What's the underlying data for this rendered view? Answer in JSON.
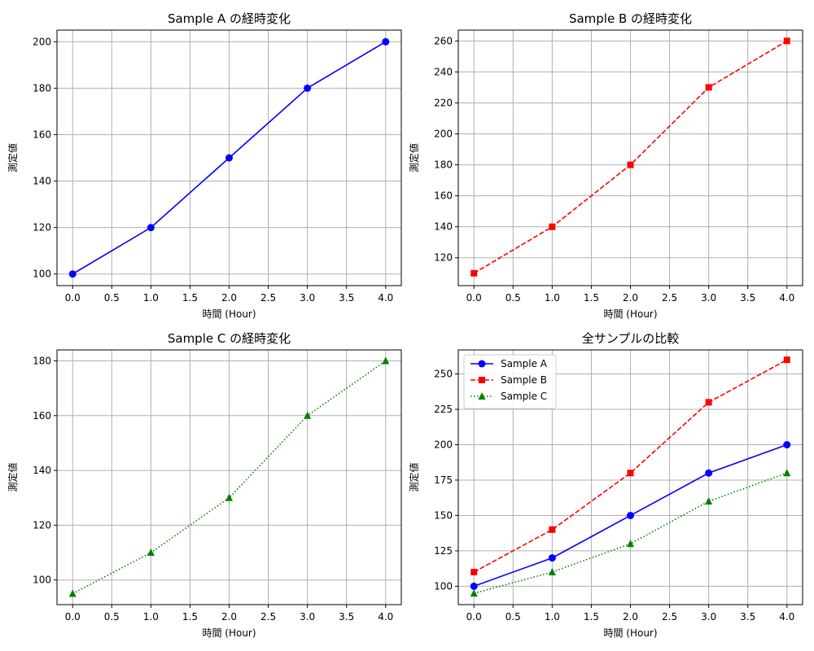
{
  "chart_data": [
    {
      "type": "line",
      "title": "Sample A の経時変化",
      "xlabel": "時間 (Hour)",
      "ylabel": "測定値",
      "xlim": [
        -0.2,
        4.2
      ],
      "ylim": [
        95,
        205
      ],
      "xticks": [
        0.0,
        0.5,
        1.0,
        1.5,
        2.0,
        2.5,
        3.0,
        3.5,
        4.0
      ],
      "yticks": [
        100,
        120,
        140,
        160,
        180,
        200
      ],
      "grid": true,
      "series": [
        {
          "x": [
            0,
            1,
            2,
            3,
            4
          ],
          "values": [
            100,
            120,
            150,
            180,
            200
          ],
          "color": "#0000ff",
          "linestyle": "solid",
          "marker": "circle"
        }
      ]
    },
    {
      "type": "line",
      "title": "Sample B の経時変化",
      "xlabel": "時間 (Hour)",
      "ylabel": "測定値",
      "xlim": [
        -0.2,
        4.2
      ],
      "ylim": [
        102,
        267
      ],
      "xticks": [
        0.0,
        0.5,
        1.0,
        1.5,
        2.0,
        2.5,
        3.0,
        3.5,
        4.0
      ],
      "yticks": [
        120,
        140,
        160,
        180,
        200,
        220,
        240,
        260
      ],
      "grid": true,
      "series": [
        {
          "x": [
            0,
            1,
            2,
            3,
            4
          ],
          "values": [
            110,
            140,
            180,
            230,
            260
          ],
          "color": "#ff0000",
          "linestyle": "dashed",
          "marker": "square"
        }
      ]
    },
    {
      "type": "line",
      "title": "Sample C の経時変化",
      "xlabel": "時間 (Hour)",
      "ylabel": "測定値",
      "xlim": [
        -0.2,
        4.2
      ],
      "ylim": [
        91,
        184
      ],
      "xticks": [
        0.0,
        0.5,
        1.0,
        1.5,
        2.0,
        2.5,
        3.0,
        3.5,
        4.0
      ],
      "yticks": [
        100,
        120,
        140,
        160,
        180
      ],
      "grid": true,
      "series": [
        {
          "x": [
            0,
            1,
            2,
            3,
            4
          ],
          "values": [
            95,
            110,
            130,
            160,
            180
          ],
          "color": "#008000",
          "linestyle": "dotted",
          "marker": "triangle"
        }
      ]
    },
    {
      "type": "line",
      "title": "全サンプルの比較",
      "xlabel": "時間 (Hour)",
      "ylabel": "測定値",
      "xlim": [
        -0.2,
        4.2
      ],
      "ylim": [
        87,
        267
      ],
      "xticks": [
        0.0,
        0.5,
        1.0,
        1.5,
        2.0,
        2.5,
        3.0,
        3.5,
        4.0
      ],
      "yticks": [
        100,
        125,
        150,
        175,
        200,
        225,
        250
      ],
      "grid": true,
      "legend": "upper-left",
      "series": [
        {
          "name": "Sample A",
          "x": [
            0,
            1,
            2,
            3,
            4
          ],
          "values": [
            100,
            120,
            150,
            180,
            200
          ],
          "color": "#0000ff",
          "linestyle": "solid",
          "marker": "circle"
        },
        {
          "name": "Sample B",
          "x": [
            0,
            1,
            2,
            3,
            4
          ],
          "values": [
            110,
            140,
            180,
            230,
            260
          ],
          "color": "#ff0000",
          "linestyle": "dashed",
          "marker": "square"
        },
        {
          "name": "Sample C",
          "x": [
            0,
            1,
            2,
            3,
            4
          ],
          "values": [
            95,
            110,
            130,
            160,
            180
          ],
          "color": "#008000",
          "linestyle": "dotted",
          "marker": "triangle"
        }
      ]
    }
  ]
}
